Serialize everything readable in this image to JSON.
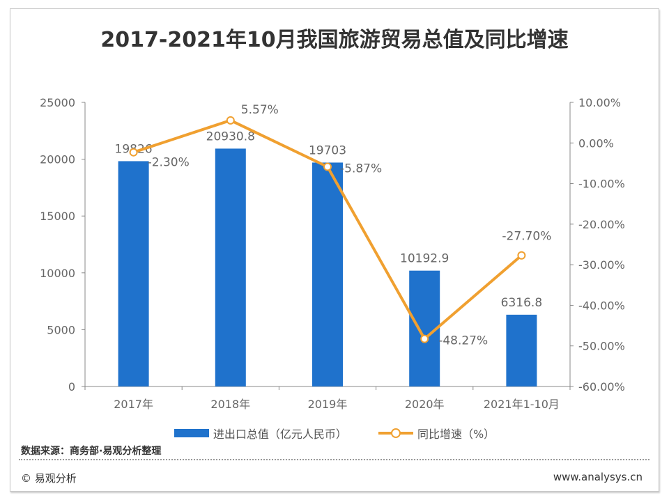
{
  "chart_data": {
    "type": "bar+line",
    "title": "2017-2021年10月我国旅游贸易总值及同比增速",
    "categories": [
      "2017年",
      "2018年",
      "2019年",
      "2020年",
      "2021年1-10月"
    ],
    "series": [
      {
        "name": "进出口总值（亿元人民币）",
        "type": "bar",
        "axis": "left",
        "color": "#1f72cc",
        "values": [
          19826,
          20930.8,
          19703,
          10192.9,
          6316.8
        ],
        "labels": [
          "19826",
          "20930.8",
          "19703",
          "10192.9",
          "6316.8"
        ]
      },
      {
        "name": "同比增速（%）",
        "type": "line",
        "axis": "right",
        "color": "#f0a030",
        "values": [
          -2.3,
          5.57,
          -5.87,
          -48.27,
          -27.7
        ],
        "labels": [
          "-2.30%",
          "5.57%",
          "-5.87%",
          "-48.27%",
          "-27.70%"
        ]
      }
    ],
    "left_axis": {
      "range": [
        0,
        25000
      ],
      "ticks": [
        "0",
        "5000",
        "10000",
        "15000",
        "20000",
        "25000"
      ]
    },
    "right_axis": {
      "range": [
        -60,
        10
      ],
      "ticks": [
        "-60.00%",
        "-50.00%",
        "-40.00%",
        "-30.00%",
        "-20.00%",
        "-10.00%",
        "0.00%",
        "10.00%"
      ]
    },
    "grid": false,
    "legend": "bottom"
  },
  "source": "数据来源：商务部·易观分析整理",
  "copyright": "© 易观分析",
  "website": "www.analysys.cn"
}
